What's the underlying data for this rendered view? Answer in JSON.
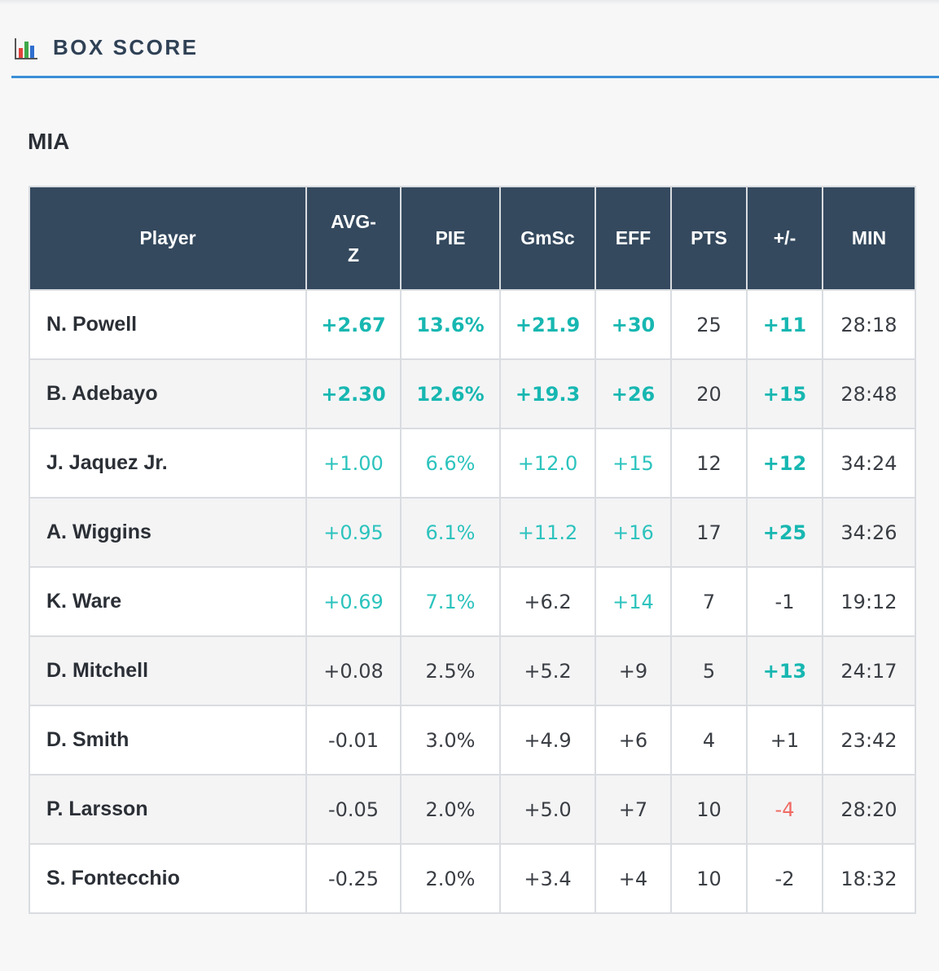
{
  "header": {
    "title": "BOX SCORE",
    "icon": "bar-chart-icon"
  },
  "team": "MIA",
  "columns": [
    "Player",
    "AVG-\nZ",
    "PIE",
    "GmSc",
    "EFF",
    "PTS",
    "+/-",
    "MIN"
  ],
  "colors": {
    "header_bg": "#34495e",
    "accent": "#3a8fd6",
    "positive": "#17b7b1",
    "negative": "#f06a63"
  },
  "rows": [
    {
      "player": "N. Powell",
      "avgz": "+2.67",
      "pie": "13.6%",
      "gmsc": "+21.9",
      "eff": "+30",
      "pts": "25",
      "pm": "+11",
      "min": "28:18",
      "cls": [
        "good",
        "good",
        "good",
        "good",
        "plain",
        "good",
        "plain"
      ]
    },
    {
      "player": "B. Adebayo",
      "avgz": "+2.30",
      "pie": "12.6%",
      "gmsc": "+19.3",
      "eff": "+26",
      "pts": "20",
      "pm": "+15",
      "min": "28:48",
      "cls": [
        "good",
        "good",
        "good",
        "good",
        "plain",
        "good",
        "plain"
      ]
    },
    {
      "player": "J. Jaquez Jr.",
      "avgz": "+1.00",
      "pie": "6.6%",
      "gmsc": "+12.0",
      "eff": "+15",
      "pts": "12",
      "pm": "+12",
      "min": "34:24",
      "cls": [
        "mild",
        "mild",
        "mild",
        "mild",
        "plain",
        "good",
        "plain"
      ]
    },
    {
      "player": "A. Wiggins",
      "avgz": "+0.95",
      "pie": "6.1%",
      "gmsc": "+11.2",
      "eff": "+16",
      "pts": "17",
      "pm": "+25",
      "min": "34:26",
      "cls": [
        "mild",
        "mild",
        "mild",
        "mild",
        "plain",
        "good",
        "plain"
      ]
    },
    {
      "player": "K. Ware",
      "avgz": "+0.69",
      "pie": "7.1%",
      "gmsc": "+6.2",
      "eff": "+14",
      "pts": "7",
      "pm": "-1",
      "min": "19:12",
      "cls": [
        "mild",
        "mild",
        "plain",
        "mild",
        "plain",
        "plain",
        "plain"
      ]
    },
    {
      "player": "D. Mitchell",
      "avgz": "+0.08",
      "pie": "2.5%",
      "gmsc": "+5.2",
      "eff": "+9",
      "pts": "5",
      "pm": "+13",
      "min": "24:17",
      "cls": [
        "plain",
        "plain",
        "plain",
        "plain",
        "plain",
        "good",
        "plain"
      ]
    },
    {
      "player": "D. Smith",
      "avgz": "-0.01",
      "pie": "3.0%",
      "gmsc": "+4.9",
      "eff": "+6",
      "pts": "4",
      "pm": "+1",
      "min": "23:42",
      "cls": [
        "plain",
        "plain",
        "plain",
        "plain",
        "plain",
        "plain",
        "plain"
      ]
    },
    {
      "player": "P. Larsson",
      "avgz": "-0.05",
      "pie": "2.0%",
      "gmsc": "+5.0",
      "eff": "+7",
      "pts": "10",
      "pm": "-4",
      "min": "28:20",
      "cls": [
        "plain",
        "plain",
        "plain",
        "plain",
        "plain",
        "bad",
        "plain"
      ]
    },
    {
      "player": "S. Fontecchio",
      "avgz": "-0.25",
      "pie": "2.0%",
      "gmsc": "+3.4",
      "eff": "+4",
      "pts": "10",
      "pm": "-2",
      "min": "18:32",
      "cls": [
        "plain",
        "plain",
        "plain",
        "plain",
        "plain",
        "plain",
        "plain"
      ]
    }
  ]
}
